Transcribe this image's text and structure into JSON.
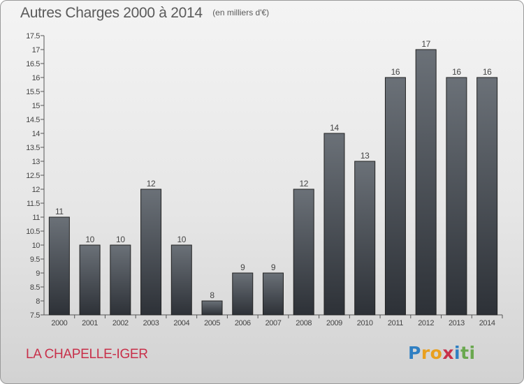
{
  "title": "Autres Charges 2000 à 2014",
  "unit_note": "(en milliers d'€)",
  "commune": "LA CHAPELLE-IGER",
  "logo": {
    "letters": [
      "P",
      "r",
      "o",
      "x",
      "i",
      "t",
      "i"
    ],
    "colors": [
      "#2f7fc2",
      "#e9a020",
      "#e9a020",
      "#c8304a",
      "#2f7fc2",
      "#6aa84f",
      "#6aa84f"
    ]
  },
  "colors": {
    "bar_top": "#6b7178",
    "bar_bottom": "#2d3137",
    "commune_text": "#c8304a"
  },
  "chart_data": {
    "type": "bar",
    "title": "Autres Charges 2000 à 2014",
    "xlabel": "",
    "ylabel": "",
    "categories": [
      "2000",
      "2001",
      "2002",
      "2003",
      "2004",
      "2005",
      "2006",
      "2007",
      "2008",
      "2009",
      "2010",
      "2011",
      "2012",
      "2013",
      "2014"
    ],
    "values": [
      11,
      10,
      10,
      12,
      10,
      8,
      9,
      9,
      12,
      14,
      13,
      16,
      17,
      16,
      16
    ],
    "ylim": [
      7.5,
      17.5
    ],
    "yticks": [
      "7.5",
      "8",
      "8.5",
      "9",
      "9.5",
      "10",
      "10.5",
      "11",
      "11.5",
      "12",
      "12.5",
      "13",
      "13.5",
      "14",
      "14.5",
      "15",
      "15.5",
      "16",
      "16.5",
      "17",
      "17.5"
    ],
    "grid": false,
    "legend": "none"
  }
}
